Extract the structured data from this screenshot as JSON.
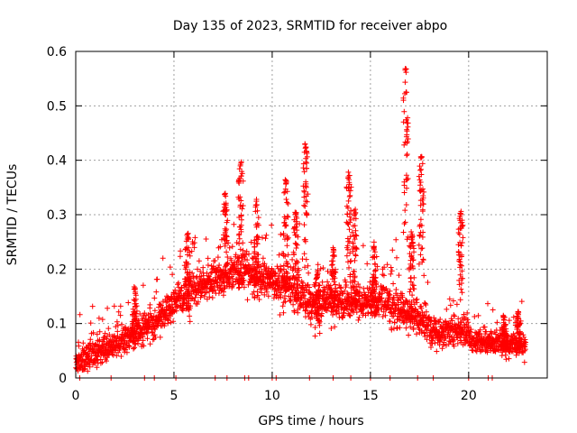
{
  "chart_data": {
    "type": "scatter",
    "title": "Day 135 of 2023, SRMTID for receiver abpo",
    "xlabel": "GPS time / hours",
    "ylabel": "SRMTID / TECUs",
    "xlim": [
      0,
      24
    ],
    "ylim": [
      0,
      0.6
    ],
    "x_ticks": [
      0,
      5,
      10,
      15,
      20
    ],
    "y_ticks": [
      0,
      0.1,
      0.2,
      0.3,
      0.4,
      0.5,
      0.6
    ],
    "x_tick_labels": [
      "0",
      "5",
      "10",
      "15",
      "20"
    ],
    "y_tick_labels": [
      "0",
      "0.1",
      "0.2",
      "0.3",
      "0.4",
      "0.5",
      "0.6"
    ],
    "grid": true,
    "marker": "+",
    "color": "#ff0000",
    "x_end": 22.9,
    "baseline": [
      {
        "x0": 0,
        "x1": 4,
        "y0": 0.03,
        "y1": 0.1,
        "s": 0.035
      },
      {
        "x0": 4,
        "x1": 5.5,
        "y0": 0.1,
        "y1": 0.15,
        "s": 0.04
      },
      {
        "x0": 5.5,
        "x1": 8,
        "y0": 0.16,
        "y1": 0.19,
        "s": 0.04
      },
      {
        "x0": 8,
        "x1": 10,
        "y0": 0.2,
        "y1": 0.18,
        "s": 0.05
      },
      {
        "x0": 10,
        "x1": 12,
        "y0": 0.18,
        "y1": 0.14,
        "s": 0.05
      },
      {
        "x0": 12,
        "x1": 16,
        "y0": 0.14,
        "y1": 0.14,
        "s": 0.045
      },
      {
        "x0": 16,
        "x1": 18,
        "y0": 0.13,
        "y1": 0.1,
        "s": 0.045
      },
      {
        "x0": 18,
        "x1": 20,
        "y0": 0.08,
        "y1": 0.09,
        "s": 0.035
      },
      {
        "x0": 20,
        "x1": 23,
        "y0": 0.07,
        "y1": 0.06,
        "s": 0.03
      }
    ],
    "spikes": [
      {
        "x": 3.0,
        "y": 0.17
      },
      {
        "x": 5.7,
        "y": 0.27
      },
      {
        "x": 7.6,
        "y": 0.34
      },
      {
        "x": 8.4,
        "y": 0.4
      },
      {
        "x": 9.2,
        "y": 0.33
      },
      {
        "x": 10.7,
        "y": 0.37
      },
      {
        "x": 11.2,
        "y": 0.31
      },
      {
        "x": 11.7,
        "y": 0.435
      },
      {
        "x": 12.3,
        "y": 0.2
      },
      {
        "x": 13.1,
        "y": 0.24
      },
      {
        "x": 13.9,
        "y": 0.38
      },
      {
        "x": 14.2,
        "y": 0.31
      },
      {
        "x": 15.2,
        "y": 0.25
      },
      {
        "x": 16.8,
        "y": 0.57
      },
      {
        "x": 17.1,
        "y": 0.27
      },
      {
        "x": 17.6,
        "y": 0.415
      },
      {
        "x": 19.6,
        "y": 0.31
      },
      {
        "x": 21.8,
        "y": 0.12
      },
      {
        "x": 22.5,
        "y": 0.13
      }
    ],
    "zero_level_x": [
      0.2,
      1.8,
      3.5,
      4.0,
      5.1,
      7.1,
      7.7,
      8.6,
      8.8,
      10.0,
      10.2,
      11.9,
      13.1,
      14.0,
      15.0,
      16.0,
      17.4,
      18.2,
      20.0,
      21.0,
      21.2
    ]
  }
}
